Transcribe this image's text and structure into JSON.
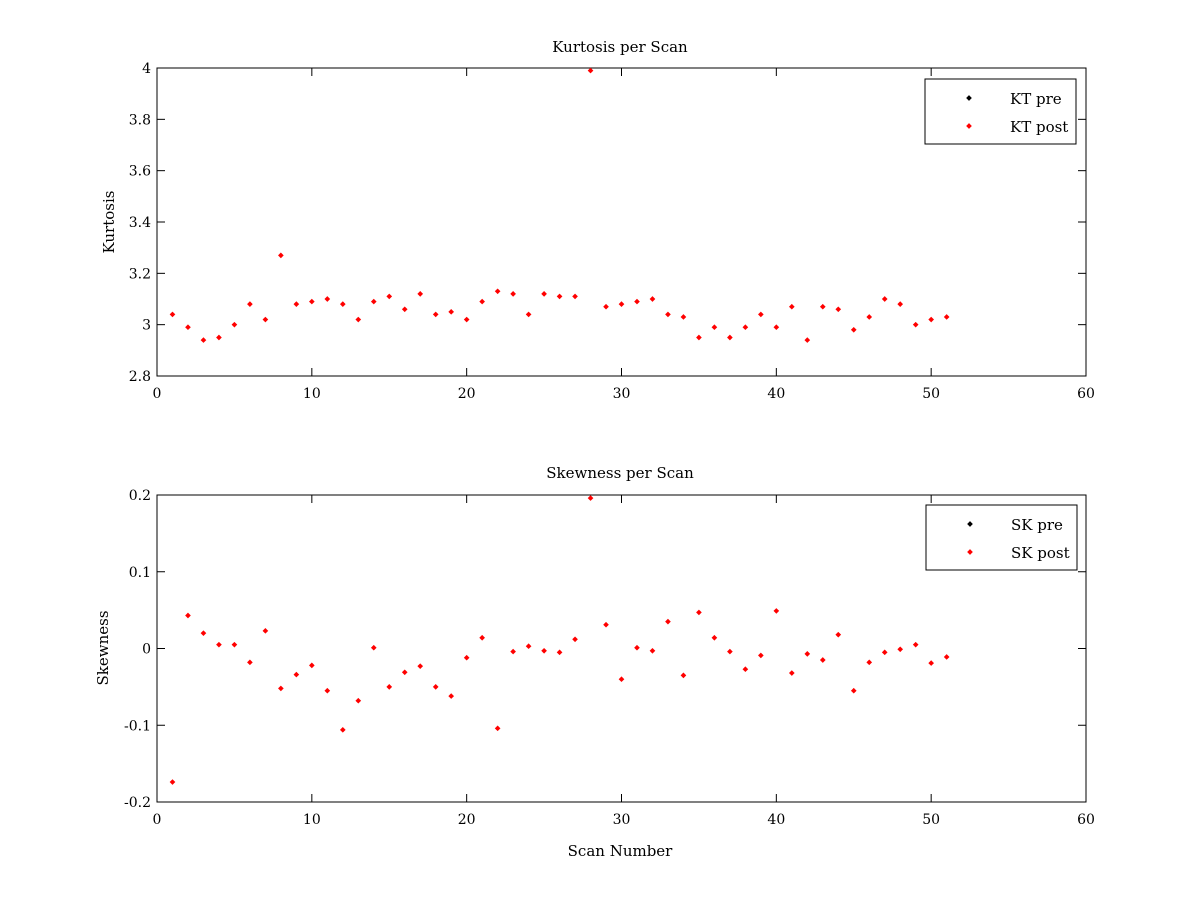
{
  "chart_data": [
    {
      "type": "scatter",
      "title": "Kurtosis per Scan",
      "xlabel": "",
      "ylabel": "Kurtosis",
      "xlim": [
        0,
        60
      ],
      "ylim": [
        2.8,
        4
      ],
      "xticks": [
        0,
        10,
        20,
        30,
        40,
        50,
        60
      ],
      "yticks": [
        2.8,
        3,
        3.2,
        3.4,
        3.6,
        3.8,
        4
      ],
      "ytick_labels": [
        "2.8",
        "3",
        "3.2",
        "3.4",
        "3.6",
        "3.8",
        "4"
      ],
      "grid": false,
      "legend_position": "top-right",
      "series": [
        {
          "name": "KT pre",
          "color": "#000000",
          "x": [],
          "y": []
        },
        {
          "name": "KT post",
          "color": "#ff0000",
          "x": [
            1,
            2,
            3,
            4,
            5,
            6,
            7,
            8,
            9,
            10,
            11,
            12,
            13,
            14,
            15,
            16,
            17,
            18,
            19,
            20,
            21,
            22,
            23,
            24,
            25,
            26,
            27,
            28,
            29,
            30,
            31,
            32,
            33,
            34,
            35,
            36,
            37,
            38,
            39,
            40,
            41,
            42,
            43,
            44,
            45,
            46,
            47,
            48,
            49,
            50,
            51
          ],
          "y": [
            3.04,
            2.99,
            2.94,
            2.95,
            3.0,
            3.08,
            3.02,
            3.27,
            3.08,
            3.09,
            3.1,
            3.08,
            3.02,
            3.09,
            3.11,
            3.06,
            3.12,
            3.04,
            3.05,
            3.02,
            3.09,
            3.13,
            3.12,
            3.04,
            3.12,
            3.11,
            3.11,
            3.99,
            3.07,
            3.08,
            3.09,
            3.1,
            3.04,
            3.03,
            2.95,
            2.99,
            2.95,
            2.99,
            3.04,
            2.99,
            3.07,
            2.94,
            3.07,
            3.06,
            2.98,
            3.03,
            3.1,
            3.08,
            3.0,
            3.02,
            3.03
          ]
        }
      ]
    },
    {
      "type": "scatter",
      "title": "Skewness per Scan",
      "xlabel": "Scan Number",
      "ylabel": "Skewness",
      "xlim": [
        0,
        60
      ],
      "ylim": [
        -0.2,
        0.2
      ],
      "xticks": [
        0,
        10,
        20,
        30,
        40,
        50,
        60
      ],
      "yticks": [
        -0.2,
        -0.1,
        0,
        0.1,
        0.2
      ],
      "ytick_labels": [
        "-0.2",
        "-0.1",
        "0",
        "0.1",
        "0.2"
      ],
      "grid": false,
      "legend_position": "top-right",
      "series": [
        {
          "name": "SK pre",
          "color": "#000000",
          "x": [],
          "y": []
        },
        {
          "name": "SK post",
          "color": "#ff0000",
          "x": [
            1,
            2,
            3,
            4,
            5,
            6,
            7,
            8,
            9,
            10,
            11,
            12,
            13,
            14,
            15,
            16,
            17,
            18,
            19,
            20,
            21,
            22,
            23,
            24,
            25,
            26,
            27,
            28,
            29,
            30,
            31,
            32,
            33,
            34,
            35,
            36,
            37,
            38,
            39,
            40,
            41,
            42,
            43,
            44,
            45,
            46,
            47,
            48,
            49,
            50,
            51
          ],
          "y": [
            -0.174,
            0.043,
            0.02,
            0.005,
            0.005,
            -0.018,
            0.023,
            -0.052,
            -0.034,
            -0.022,
            -0.055,
            -0.106,
            -0.068,
            0.001,
            -0.05,
            -0.031,
            -0.023,
            -0.05,
            -0.062,
            -0.012,
            0.014,
            -0.104,
            -0.004,
            0.003,
            -0.003,
            -0.005,
            0.012,
            0.196,
            0.031,
            -0.04,
            0.001,
            -0.003,
            0.035,
            -0.035,
            0.047,
            0.014,
            -0.004,
            -0.027,
            -0.009,
            0.049,
            -0.032,
            -0.007,
            -0.015,
            0.018,
            -0.055,
            -0.018,
            -0.005,
            -0.001,
            0.005,
            -0.019,
            -0.011
          ]
        }
      ]
    }
  ]
}
